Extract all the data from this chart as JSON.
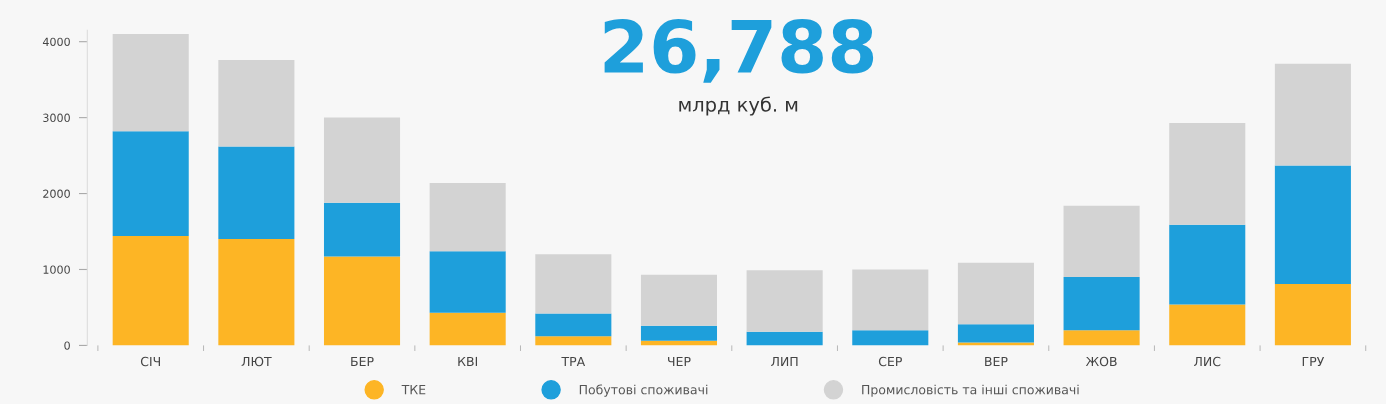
{
  "chart_data": {
    "type": "bar",
    "title": "26,788",
    "subtitle": "млрд куб. м",
    "stacked": true,
    "categories": [
      "СІЧ",
      "ЛЮТ",
      "БЕР",
      "КВІ",
      "ТРА",
      "ЧЕР",
      "ЛИП",
      "СЕР",
      "ВЕР",
      "ЖОВ",
      "ЛИС",
      "ГРУ"
    ],
    "series": [
      {
        "name": "ТКЕ",
        "color": "#fdb525",
        "values": [
          1440,
          1400,
          1170,
          430,
          120,
          60,
          null,
          null,
          40,
          200,
          540,
          810
        ]
      },
      {
        "name": "Побутові споживачі",
        "color": "#1e9fdb",
        "values": [
          1380,
          1220,
          710,
          810,
          300,
          200,
          180,
          200,
          240,
          700,
          1050,
          1560
        ]
      },
      {
        "name": "Промисловість та інші споживачі",
        "color": "#d3d3d3",
        "values": [
          1280,
          1140,
          1120,
          900,
          780,
          670,
          810,
          800,
          810,
          940,
          1340,
          1340
        ]
      }
    ],
    "ylim": [
      0,
      4150
    ],
    "yticks": [
      0,
      1000,
      2000,
      3000,
      4000
    ],
    "grid": false,
    "legend": "bottom"
  }
}
